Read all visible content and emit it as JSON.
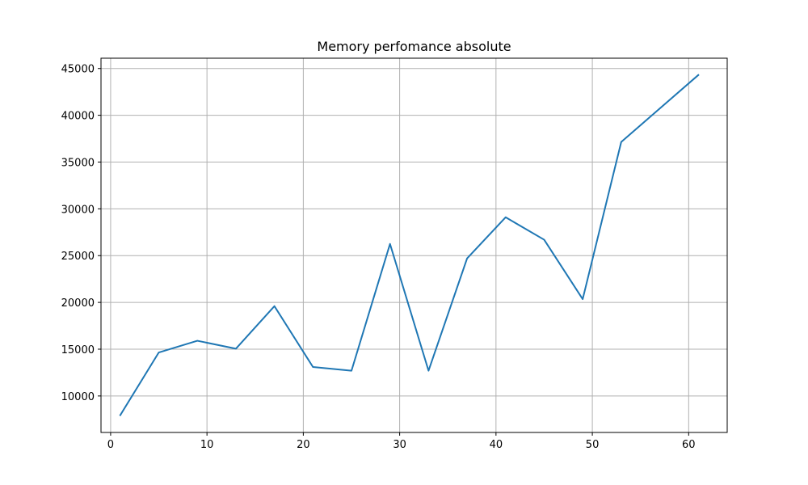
{
  "chart_data": {
    "type": "line",
    "title": "Memory perfomance absolute",
    "xlabel": "",
    "ylabel": "",
    "xlim": [
      -1.0,
      64.0
    ],
    "ylim": [
      6100,
      46100
    ],
    "xticks": [
      0,
      10,
      20,
      30,
      40,
      50,
      60
    ],
    "yticks": [
      10000,
      15000,
      20000,
      25000,
      30000,
      35000,
      40000,
      45000
    ],
    "grid": true,
    "legend": "none",
    "series": [
      {
        "color": "#1f77b4",
        "x": [
          1,
          5,
          9,
          13,
          17,
          21,
          25,
          29,
          33,
          37,
          41,
          45,
          49,
          53,
          61
        ],
        "y": [
          7950,
          14650,
          15900,
          15050,
          19600,
          13100,
          12700,
          26250,
          12700,
          24700,
          29100,
          26700,
          20350,
          37150,
          44300
        ]
      }
    ]
  }
}
